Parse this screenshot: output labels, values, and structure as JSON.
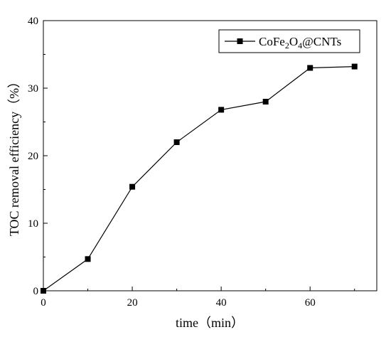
{
  "chart_data": {
    "type": "line",
    "title": "",
    "xlabel": "time（min）",
    "ylabel": "TOC removal efficiency（%）",
    "xlim": [
      0,
      75
    ],
    "ylim": [
      0,
      40
    ],
    "xticks": [
      0,
      20,
      40,
      60
    ],
    "yticks": [
      0,
      10,
      20,
      30,
      40
    ],
    "grid": false,
    "legend_position": "top-right",
    "series": [
      {
        "name": "CoFe2O4@CNTs",
        "marker": "square",
        "color": "#000000",
        "x": [
          0,
          10,
          20,
          30,
          40,
          50,
          60,
          70
        ],
        "y": [
          0,
          4.7,
          15.4,
          22.0,
          26.8,
          28.0,
          33.0,
          33.2
        ]
      }
    ],
    "legend": {
      "parts": [
        {
          "text": "CoFe",
          "sub": false
        },
        {
          "text": "2",
          "sub": true
        },
        {
          "text": "O",
          "sub": false
        },
        {
          "text": "4",
          "sub": true
        },
        {
          "text": "@CNTs",
          "sub": false
        }
      ]
    }
  }
}
